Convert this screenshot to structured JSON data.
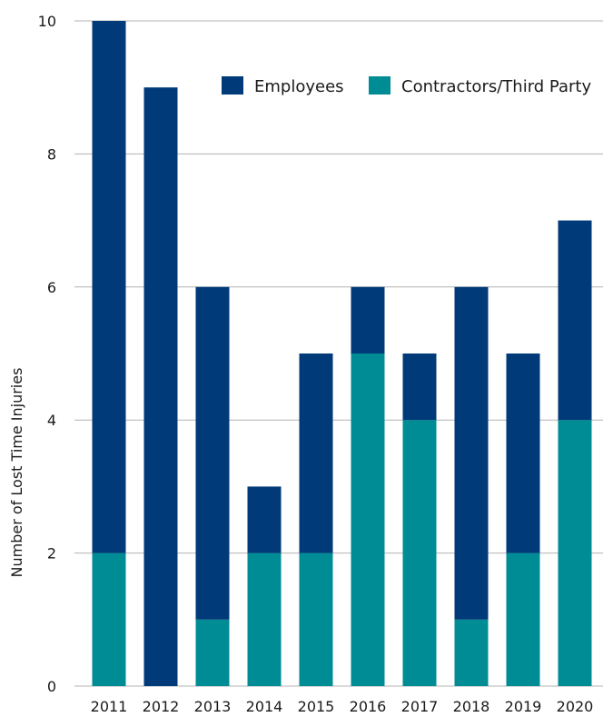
{
  "chart_data": {
    "type": "bar",
    "stacked": true,
    "categories": [
      "2011",
      "2012",
      "2013",
      "2014",
      "2015",
      "2016",
      "2017",
      "2018",
      "2019",
      "2020"
    ],
    "series": [
      {
        "name": "Contractors/Third Party",
        "color": "#008C95",
        "values": [
          2,
          0,
          1,
          2,
          2,
          5,
          4,
          1,
          2,
          4
        ]
      },
      {
        "name": "Employees",
        "color": "#003A78",
        "values": [
          8,
          9,
          5,
          1,
          3,
          1,
          1,
          5,
          3,
          3
        ]
      }
    ],
    "ylabel": "Number of Lost Time Injuries",
    "ylim": [
      0,
      10
    ],
    "yticks": [
      "0",
      "2",
      "4",
      "6",
      "8",
      "10"
    ],
    "grid": true,
    "legend_position": "top-right"
  }
}
